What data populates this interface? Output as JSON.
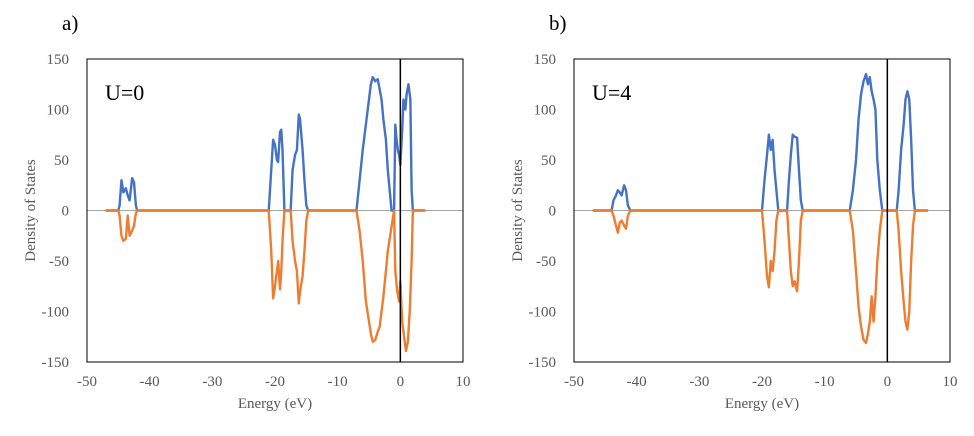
{
  "colors": {
    "spin_up": "#4472c4",
    "spin_down": "#ed7d31",
    "zero_line": "#a6a6a6",
    "frame": "#000000",
    "fermi": "#000000",
    "text": "#595959"
  },
  "chart_data": [
    {
      "panel_label": "a)",
      "type": "line",
      "annotation": "U=0",
      "xlabel": "Energy (eV)",
      "ylabel": "Density of States",
      "xlim": [
        -50,
        10
      ],
      "ylim": [
        -150,
        150
      ],
      "x_ticks": [
        "-50",
        "-40",
        "-30",
        "-20",
        "-10",
        "0",
        "10"
      ],
      "y_ticks": [
        "150",
        "100",
        "50",
        "0",
        "-50",
        "-100",
        "-150"
      ],
      "fermi_level": 0,
      "grid": false,
      "series": [
        {
          "values": [
            [
              -47,
              0
            ],
            [
              -45,
              0
            ],
            [
              -44.8,
              5
            ],
            [
              -44.5,
              30
            ],
            [
              -44.2,
              18
            ],
            [
              -43.8,
              22
            ],
            [
              -43.5,
              15
            ],
            [
              -43.2,
              10
            ],
            [
              -42.8,
              32
            ],
            [
              -42.5,
              28
            ],
            [
              -42.2,
              5
            ],
            [
              -42,
              0
            ],
            [
              -21,
              0
            ],
            [
              -20.6,
              40
            ],
            [
              -20.3,
              70
            ],
            [
              -20,
              65
            ],
            [
              -19.7,
              50
            ],
            [
              -19.5,
              48
            ],
            [
              -19.2,
              78
            ],
            [
              -19,
              80
            ],
            [
              -18.8,
              60
            ],
            [
              -18.5,
              0
            ],
            [
              -17.5,
              0
            ],
            [
              -17.2,
              40
            ],
            [
              -16.8,
              55
            ],
            [
              -16.5,
              60
            ],
            [
              -16.2,
              95
            ],
            [
              -16,
              90
            ],
            [
              -15.6,
              60
            ],
            [
              -15.3,
              30
            ],
            [
              -15,
              5
            ],
            [
              -14.7,
              0
            ],
            [
              -7,
              0
            ],
            [
              -6.5,
              30
            ],
            [
              -6,
              60
            ],
            [
              -5.5,
              85
            ],
            [
              -5,
              110
            ],
            [
              -4.7,
              125
            ],
            [
              -4.4,
              132
            ],
            [
              -4,
              128
            ],
            [
              -3.6,
              130
            ],
            [
              -3.3,
              120
            ],
            [
              -3,
              110
            ],
            [
              -2.7,
              90
            ],
            [
              -2.3,
              70
            ],
            [
              -2,
              40
            ],
            [
              -1.7,
              20
            ],
            [
              -1.4,
              0
            ],
            [
              -1,
              0
            ],
            [
              -0.8,
              85
            ],
            [
              -0.6,
              70
            ],
            [
              -0.4,
              60
            ],
            [
              -0.2,
              55
            ],
            [
              0,
              45
            ],
            [
              0.3,
              80
            ],
            [
              0.5,
              110
            ],
            [
              0.8,
              100
            ],
            [
              1,
              115
            ],
            [
              1.3,
              125
            ],
            [
              1.6,
              110
            ],
            [
              1.8,
              20
            ],
            [
              2,
              0
            ],
            [
              4,
              0
            ]
          ]
        },
        {
          "values": [
            [
              -47,
              0
            ],
            [
              -45,
              0
            ],
            [
              -44.8,
              -5
            ],
            [
              -44.5,
              -25
            ],
            [
              -44.2,
              -30
            ],
            [
              -43.8,
              -28
            ],
            [
              -43.5,
              -5
            ],
            [
              -43.2,
              -25
            ],
            [
              -42.8,
              -20
            ],
            [
              -42.5,
              -15
            ],
            [
              -42.2,
              -3
            ],
            [
              -42,
              0
            ],
            [
              -21,
              0
            ],
            [
              -20.6,
              -40
            ],
            [
              -20.3,
              -87
            ],
            [
              -20,
              -75
            ],
            [
              -19.7,
              -60
            ],
            [
              -19.5,
              -50
            ],
            [
              -19.2,
              -78
            ],
            [
              -19,
              -60
            ],
            [
              -18.8,
              -30
            ],
            [
              -18.5,
              0
            ],
            [
              -17.5,
              0
            ],
            [
              -17.2,
              -30
            ],
            [
              -16.8,
              -50
            ],
            [
              -16.5,
              -60
            ],
            [
              -16.2,
              -92
            ],
            [
              -16,
              -80
            ],
            [
              -15.6,
              -65
            ],
            [
              -15.3,
              -40
            ],
            [
              -15,
              -10
            ],
            [
              -14.7,
              0
            ],
            [
              -7,
              0
            ],
            [
              -6.5,
              -20
            ],
            [
              -6,
              -50
            ],
            [
              -5.5,
              -90
            ],
            [
              -5,
              -110
            ],
            [
              -4.7,
              -122
            ],
            [
              -4.4,
              -130
            ],
            [
              -4,
              -128
            ],
            [
              -3.6,
              -120
            ],
            [
              -3.3,
              -115
            ],
            [
              -3,
              -100
            ],
            [
              -2.7,
              -85
            ],
            [
              -2.3,
              -60
            ],
            [
              -2,
              -40
            ],
            [
              -1.5,
              -20
            ],
            [
              -1,
              0
            ],
            [
              -0.8,
              -60
            ],
            [
              -0.5,
              -80
            ],
            [
              -0.2,
              -90
            ],
            [
              0,
              -70
            ],
            [
              0.3,
              -110
            ],
            [
              0.6,
              -125
            ],
            [
              0.9,
              -139
            ],
            [
              1.2,
              -130
            ],
            [
              1.5,
              -100
            ],
            [
              1.8,
              -50
            ],
            [
              2,
              0
            ],
            [
              4,
              0
            ]
          ]
        }
      ]
    },
    {
      "panel_label": "b)",
      "type": "line",
      "annotation": "U=4",
      "xlabel": "Energy (eV)",
      "ylabel": "Density of States",
      "xlim": [
        -50,
        10
      ],
      "ylim": [
        -150,
        150
      ],
      "x_ticks": [
        "-50",
        "-40",
        "-30",
        "-20",
        "-10",
        "0",
        "10"
      ],
      "y_ticks": [
        "150",
        "100",
        "50",
        "0",
        "-50",
        "-100",
        "-150"
      ],
      "fermi_level": 0,
      "grid": false,
      "series": [
        {
          "values": [
            [
              -47,
              0
            ],
            [
              -44,
              0
            ],
            [
              -43.7,
              10
            ],
            [
              -43.3,
              15
            ],
            [
              -43,
              20
            ],
            [
              -42.7,
              18
            ],
            [
              -42.4,
              15
            ],
            [
              -42,
              25
            ],
            [
              -41.7,
              20
            ],
            [
              -41.4,
              5
            ],
            [
              -41,
              0
            ],
            [
              -20,
              0
            ],
            [
              -19.6,
              30
            ],
            [
              -19.2,
              55
            ],
            [
              -18.9,
              75
            ],
            [
              -18.6,
              60
            ],
            [
              -18.3,
              70
            ],
            [
              -18,
              40
            ],
            [
              -17.7,
              20
            ],
            [
              -17.4,
              0
            ],
            [
              -16,
              0
            ],
            [
              -15.7,
              30
            ],
            [
              -15.4,
              55
            ],
            [
              -15.1,
              75
            ],
            [
              -14.8,
              73
            ],
            [
              -14.4,
              72
            ],
            [
              -14.1,
              40
            ],
            [
              -13.8,
              10
            ],
            [
              -13.5,
              0
            ],
            [
              -6,
              0
            ],
            [
              -5.5,
              20
            ],
            [
              -5,
              50
            ],
            [
              -4.6,
              90
            ],
            [
              -4.2,
              115
            ],
            [
              -3.8,
              128
            ],
            [
              -3.4,
              135
            ],
            [
              -3.1,
              125
            ],
            [
              -2.8,
              132
            ],
            [
              -2.5,
              118
            ],
            [
              -2.2,
              110
            ],
            [
              -1.9,
              100
            ],
            [
              -1.6,
              50
            ],
            [
              -1.2,
              20
            ],
            [
              -0.8,
              0
            ],
            [
              1.5,
              0
            ],
            [
              1.8,
              20
            ],
            [
              2.2,
              60
            ],
            [
              2.6,
              85
            ],
            [
              2.9,
              110
            ],
            [
              3.2,
              118
            ],
            [
              3.5,
              110
            ],
            [
              3.8,
              70
            ],
            [
              4.1,
              20
            ],
            [
              4.4,
              0
            ],
            [
              6.5,
              0
            ]
          ]
        },
        {
          "values": [
            [
              -47,
              0
            ],
            [
              -44,
              0
            ],
            [
              -43.7,
              -5
            ],
            [
              -43.3,
              -15
            ],
            [
              -43,
              -22
            ],
            [
              -42.7,
              -12
            ],
            [
              -42.4,
              -10
            ],
            [
              -42,
              -15
            ],
            [
              -41.7,
              -18
            ],
            [
              -41.4,
              -5
            ],
            [
              -41,
              0
            ],
            [
              -20,
              0
            ],
            [
              -19.6,
              -30
            ],
            [
              -19.2,
              -65
            ],
            [
              -18.9,
              -76
            ],
            [
              -18.6,
              -50
            ],
            [
              -18.3,
              -60
            ],
            [
              -18,
              -40
            ],
            [
              -17.7,
              -10
            ],
            [
              -17.4,
              0
            ],
            [
              -16,
              0
            ],
            [
              -15.7,
              -30
            ],
            [
              -15.4,
              -60
            ],
            [
              -15.1,
              -75
            ],
            [
              -14.8,
              -70
            ],
            [
              -14.4,
              -80
            ],
            [
              -14.1,
              -50
            ],
            [
              -13.8,
              -10
            ],
            [
              -13.5,
              0
            ],
            [
              -6,
              0
            ],
            [
              -5.5,
              -20
            ],
            [
              -5,
              -60
            ],
            [
              -4.6,
              -95
            ],
            [
              -4.2,
              -115
            ],
            [
              -3.8,
              -128
            ],
            [
              -3.4,
              -131
            ],
            [
              -3.1,
              -122
            ],
            [
              -2.8,
              -110
            ],
            [
              -2.5,
              -85
            ],
            [
              -2.2,
              -110
            ],
            [
              -1.9,
              -85
            ],
            [
              -1.6,
              -50
            ],
            [
              -1.2,
              -20
            ],
            [
              -0.8,
              0
            ],
            [
              1.5,
              0
            ],
            [
              1.8,
              -20
            ],
            [
              2.2,
              -60
            ],
            [
              2.6,
              -90
            ],
            [
              2.9,
              -110
            ],
            [
              3.2,
              -118
            ],
            [
              3.5,
              -100
            ],
            [
              3.8,
              -50
            ],
            [
              4.1,
              -15
            ],
            [
              4.4,
              0
            ],
            [
              6.5,
              0
            ]
          ]
        }
      ]
    }
  ]
}
